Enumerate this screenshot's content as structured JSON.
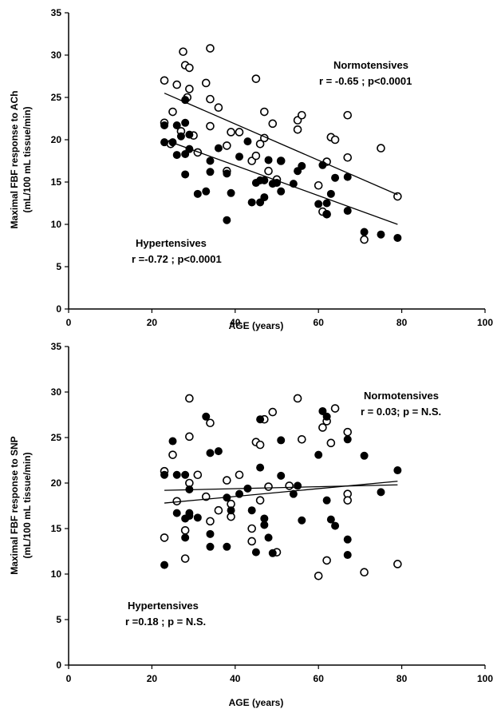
{
  "chart_data": [
    {
      "type": "scatter",
      "xlabel": "AGE (years)",
      "ylabel_line1": "Maximal FBF response to ACh",
      "ylabel_line2": "(mL/100 mL tissue/min)",
      "xlim": [
        0,
        100
      ],
      "ylim": [
        0,
        35
      ],
      "xticks": [
        "0",
        "20",
        "40",
        "60",
        "80",
        "100"
      ],
      "yticks": [
        "0",
        "5",
        "10",
        "15",
        "20",
        "25",
        "30",
        "35"
      ],
      "annotations": [
        {
          "lines": [
            "Normotensives",
            "r = -0.65 ; p<0.0001"
          ]
        },
        {
          "lines": [
            "Hypertensives",
            "r =-0.72 ; p<0.0001"
          ]
        }
      ],
      "series": [
        {
          "marker": "open-circle",
          "trendline": [
            [
              23,
              25.5
            ],
            [
              79,
              13.5
            ]
          ],
          "points": [
            [
              23,
              27.0
            ],
            [
              23,
              22.0
            ],
            [
              24.5,
              19.5
            ],
            [
              25,
              23.3
            ],
            [
              26,
              26.5
            ],
            [
              27,
              21.0
            ],
            [
              27.5,
              30.4
            ],
            [
              28,
              28.8
            ],
            [
              28.5,
              25.0
            ],
            [
              29,
              28.5
            ],
            [
              29,
              26.0
            ],
            [
              30,
              20.5
            ],
            [
              31,
              18.5
            ],
            [
              33,
              26.7
            ],
            [
              34,
              30.8
            ],
            [
              34,
              24.8
            ],
            [
              34,
              21.6
            ],
            [
              36,
              23.8
            ],
            [
              38,
              16.3
            ],
            [
              38,
              19.3
            ],
            [
              39,
              20.9
            ],
            [
              41,
              20.9
            ],
            [
              44,
              17.5
            ],
            [
              45,
              27.2
            ],
            [
              45,
              18.1
            ],
            [
              46,
              19.5
            ],
            [
              47,
              23.3
            ],
            [
              47,
              20.2
            ],
            [
              48,
              16.3
            ],
            [
              49,
              21.9
            ],
            [
              50,
              15.3
            ],
            [
              51,
              17.5
            ],
            [
              55,
              21.2
            ],
            [
              55,
              22.3
            ],
            [
              56,
              22.9
            ],
            [
              60,
              14.6
            ],
            [
              61,
              11.5
            ],
            [
              62,
              17.4
            ],
            [
              62,
              11.2
            ],
            [
              63,
              20.3
            ],
            [
              64,
              20.0
            ],
            [
              67,
              22.9
            ],
            [
              67,
              17.9
            ],
            [
              71,
              8.2
            ],
            [
              75,
              19.0
            ],
            [
              79,
              13.3
            ]
          ]
        },
        {
          "marker": "filled-circle",
          "trendline": [
            [
              23,
              20.0
            ],
            [
              79,
              10.0
            ]
          ],
          "points": [
            [
              23,
              21.7
            ],
            [
              23,
              19.7
            ],
            [
              25,
              19.7
            ],
            [
              26,
              18.2
            ],
            [
              26,
              21.7
            ],
            [
              27,
              20.4
            ],
            [
              28,
              24.7
            ],
            [
              28,
              22.0
            ],
            [
              28,
              15.9
            ],
            [
              28,
              18.3
            ],
            [
              29,
              20.6
            ],
            [
              29,
              18.9
            ],
            [
              31,
              13.6
            ],
            [
              33,
              13.9
            ],
            [
              34,
              16.2
            ],
            [
              34,
              17.5
            ],
            [
              36,
              19.0
            ],
            [
              38,
              10.5
            ],
            [
              38,
              16.0
            ],
            [
              39,
              13.7
            ],
            [
              41,
              18.0
            ],
            [
              43,
              19.8
            ],
            [
              44,
              12.6
            ],
            [
              45,
              14.9
            ],
            [
              46,
              12.6
            ],
            [
              46,
              15.2
            ],
            [
              47,
              15.2
            ],
            [
              47,
              13.2
            ],
            [
              48,
              17.6
            ],
            [
              49,
              14.8
            ],
            [
              50,
              14.9
            ],
            [
              51,
              13.9
            ],
            [
              51,
              17.5
            ],
            [
              54,
              14.8
            ],
            [
              55,
              16.3
            ],
            [
              56,
              16.9
            ],
            [
              60,
              12.4
            ],
            [
              61,
              17.0
            ],
            [
              62,
              12.5
            ],
            [
              62,
              11.2
            ],
            [
              63,
              13.6
            ],
            [
              64,
              15.5
            ],
            [
              67,
              15.6
            ],
            [
              67,
              11.6
            ],
            [
              71,
              9.1
            ],
            [
              75,
              8.8
            ],
            [
              79,
              8.4
            ]
          ]
        }
      ]
    },
    {
      "type": "scatter",
      "xlabel": "AGE (years)",
      "ylabel_line1": "Maximal FBF response to SNP",
      "ylabel_line2": "(mL/100 mL tissue/min)",
      "xlim": [
        0,
        100
      ],
      "ylim": [
        0,
        35
      ],
      "xticks": [
        "0",
        "20",
        "40",
        "60",
        "80",
        "100"
      ],
      "yticks": [
        "0",
        "5",
        "10",
        "15",
        "20",
        "25",
        "30",
        "35"
      ],
      "annotations": [
        {
          "lines": [
            "Normotensives",
            "r = 0.03; p = N.S."
          ]
        },
        {
          "lines": [
            "Hypertensives",
            "r =0.18 ; p = N.S."
          ]
        }
      ],
      "series": [
        {
          "marker": "open-circle",
          "trendline": [
            [
              23,
              19.2
            ],
            [
              79,
              19.8
            ]
          ],
          "points": [
            [
              23,
              21.3
            ],
            [
              23,
              14.0
            ],
            [
              25,
              23.1
            ],
            [
              26,
              18.0
            ],
            [
              28,
              11.7
            ],
            [
              28,
              14.8
            ],
            [
              29,
              29.3
            ],
            [
              29,
              25.1
            ],
            [
              29,
              20.0
            ],
            [
              31,
              20.9
            ],
            [
              33,
              18.5
            ],
            [
              34,
              26.6
            ],
            [
              34,
              15.8
            ],
            [
              36,
              17.0
            ],
            [
              38,
              20.3
            ],
            [
              39,
              17.7
            ],
            [
              39,
              16.3
            ],
            [
              41,
              20.9
            ],
            [
              44,
              13.6
            ],
            [
              44,
              15.0
            ],
            [
              45,
              24.5
            ],
            [
              46,
              18.1
            ],
            [
              46,
              24.2
            ],
            [
              47,
              27.0
            ],
            [
              48,
              19.6
            ],
            [
              49,
              27.8
            ],
            [
              50,
              12.4
            ],
            [
              53,
              19.7
            ],
            [
              55,
              29.3
            ],
            [
              56,
              24.8
            ],
            [
              60,
              9.8
            ],
            [
              61,
              26.1
            ],
            [
              62,
              26.8
            ],
            [
              62,
              11.5
            ],
            [
              63,
              24.4
            ],
            [
              64,
              28.2
            ],
            [
              67,
              25.6
            ],
            [
              67,
              18.8
            ],
            [
              67,
              18.1
            ],
            [
              71,
              10.2
            ],
            [
              79,
              11.1
            ]
          ]
        },
        {
          "marker": "filled-circle",
          "trendline": [
            [
              23,
              17.8
            ],
            [
              79,
              20.2
            ]
          ],
          "points": [
            [
              23,
              11.0
            ],
            [
              23,
              20.9
            ],
            [
              25,
              24.6
            ],
            [
              26,
              20.9
            ],
            [
              26,
              16.7
            ],
            [
              28,
              20.9
            ],
            [
              28,
              16.1
            ],
            [
              28,
              14.0
            ],
            [
              29,
              16.4
            ],
            [
              29,
              16.7
            ],
            [
              29,
              19.3
            ],
            [
              31,
              16.2
            ],
            [
              33,
              27.3
            ],
            [
              34,
              23.3
            ],
            [
              34,
              14.4
            ],
            [
              34,
              13.0
            ],
            [
              36,
              23.5
            ],
            [
              38,
              13.0
            ],
            [
              38,
              18.4
            ],
            [
              39,
              17.0
            ],
            [
              41,
              18.8
            ],
            [
              43,
              19.4
            ],
            [
              44,
              17.0
            ],
            [
              45,
              12.4
            ],
            [
              46,
              21.7
            ],
            [
              46,
              27.0
            ],
            [
              47,
              15.4
            ],
            [
              47,
              16.1
            ],
            [
              48,
              14.0
            ],
            [
              49,
              12.3
            ],
            [
              51,
              20.8
            ],
            [
              51,
              24.7
            ],
            [
              54,
              18.8
            ],
            [
              55,
              19.7
            ],
            [
              56,
              15.9
            ],
            [
              60,
              23.1
            ],
            [
              61,
              27.9
            ],
            [
              62,
              18.1
            ],
            [
              62,
              27.3
            ],
            [
              63,
              16.0
            ],
            [
              64,
              15.3
            ],
            [
              67,
              24.8
            ],
            [
              67,
              13.8
            ],
            [
              67,
              12.1
            ],
            [
              71,
              23.0
            ],
            [
              75,
              19.0
            ],
            [
              79,
              21.4
            ]
          ]
        }
      ]
    }
  ]
}
